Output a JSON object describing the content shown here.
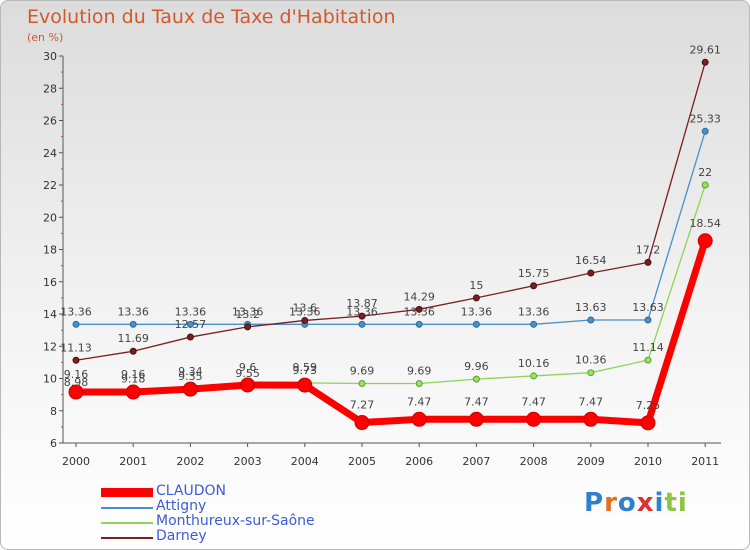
{
  "header": {
    "title": "Evolution du Taux de Taxe d'Habitation",
    "unit": "(en %)"
  },
  "chart_data": {
    "type": "line",
    "title": "Evolution du Taux de Taxe d'Habitation",
    "ylabel": "(en %)",
    "xlabel": "",
    "x": [
      "2000",
      "2001",
      "2002",
      "2003",
      "2004",
      "2005",
      "2006",
      "2007",
      "2008",
      "2009",
      "2010",
      "2011"
    ],
    "ylim": [
      6,
      30
    ],
    "yticks": [
      "6",
      "8",
      "10",
      "12",
      "14",
      "16",
      "18",
      "20",
      "22",
      "24",
      "26",
      "28",
      "30"
    ],
    "grid": false,
    "legend_position": "bottom-left",
    "series": [
      {
        "name": "CLAUDON",
        "color": "#ff0000",
        "labels": [
          "9.16",
          "9.16",
          "9.34",
          "9.6",
          "9.59",
          "7.27",
          "7.47",
          "7.47",
          "7.47",
          "7.47",
          "7.25",
          "18.54"
        ],
        "values": [
          9.16,
          9.16,
          9.34,
          9.6,
          9.59,
          7.27,
          7.47,
          7.47,
          7.47,
          7.47,
          7.25,
          18.54
        ]
      },
      {
        "name": "Attigny",
        "color": "#4a8fc8",
        "labels": [
          "13.36",
          "13.36",
          "13.36",
          "13.36",
          "13.36",
          "13.36",
          "13.36",
          "13.36",
          "13.36",
          "13.63",
          "13.63",
          "25.33"
        ],
        "values": [
          13.36,
          13.36,
          13.36,
          13.36,
          13.36,
          13.36,
          13.36,
          13.36,
          13.36,
          13.63,
          13.63,
          25.33
        ]
      },
      {
        "name": "Monthureux-sur-Saône",
        "color": "#8ed455",
        "labels": [
          "8.98",
          "9.18",
          "9.35",
          "9.55",
          "9.73",
          "9.69",
          "9.69",
          "9.96",
          "10.16",
          "10.36",
          "11.14",
          "22"
        ],
        "values": [
          8.98,
          9.18,
          9.35,
          9.55,
          9.73,
          9.69,
          9.69,
          9.96,
          10.16,
          10.36,
          11.14,
          22
        ]
      },
      {
        "name": "Darney",
        "color": "#7a1f1f",
        "labels": [
          "11.13",
          "11.69",
          "12.57",
          "13.2",
          "13.6",
          "13.87",
          "14.29",
          "15",
          "15.75",
          "16.54",
          "17.2",
          "29.61"
        ],
        "values": [
          11.13,
          11.69,
          12.57,
          13.2,
          13.6,
          13.87,
          14.29,
          15,
          15.75,
          16.54,
          17.2,
          29.61
        ]
      }
    ]
  },
  "logo": {
    "letters": [
      "P",
      "r",
      "o",
      "x",
      "i",
      "t",
      "i"
    ],
    "colors": [
      "#2f7fd0",
      "#e07020",
      "#2f7fd0",
      "#e03030",
      "#2f7fd0",
      "#8cc63f",
      "#8cc63f"
    ]
  }
}
